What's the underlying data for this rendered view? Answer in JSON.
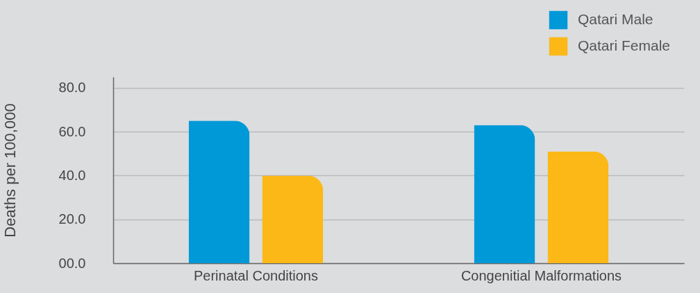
{
  "chart_data": {
    "type": "bar",
    "ylabel": "Deaths per 100,000",
    "categories": [
      "Perinatal Conditions",
      "Congenitial Malformations"
    ],
    "series": [
      {
        "name": "Qatari Male",
        "color": "#0099d8",
        "values": [
          65,
          63
        ]
      },
      {
        "name": "Qatari Female",
        "color": "#fbb817",
        "values": [
          40,
          51
        ]
      }
    ],
    "ylim": [
      0,
      85
    ],
    "yticks": [
      {
        "value": 0,
        "label": "00.0"
      },
      {
        "value": 20,
        "label": "20.0"
      },
      {
        "value": 40,
        "label": "40.0"
      },
      {
        "value": 60,
        "label": "60.0"
      },
      {
        "value": 80,
        "label": "80.0"
      }
    ],
    "grid": "y",
    "legend": "top right"
  }
}
